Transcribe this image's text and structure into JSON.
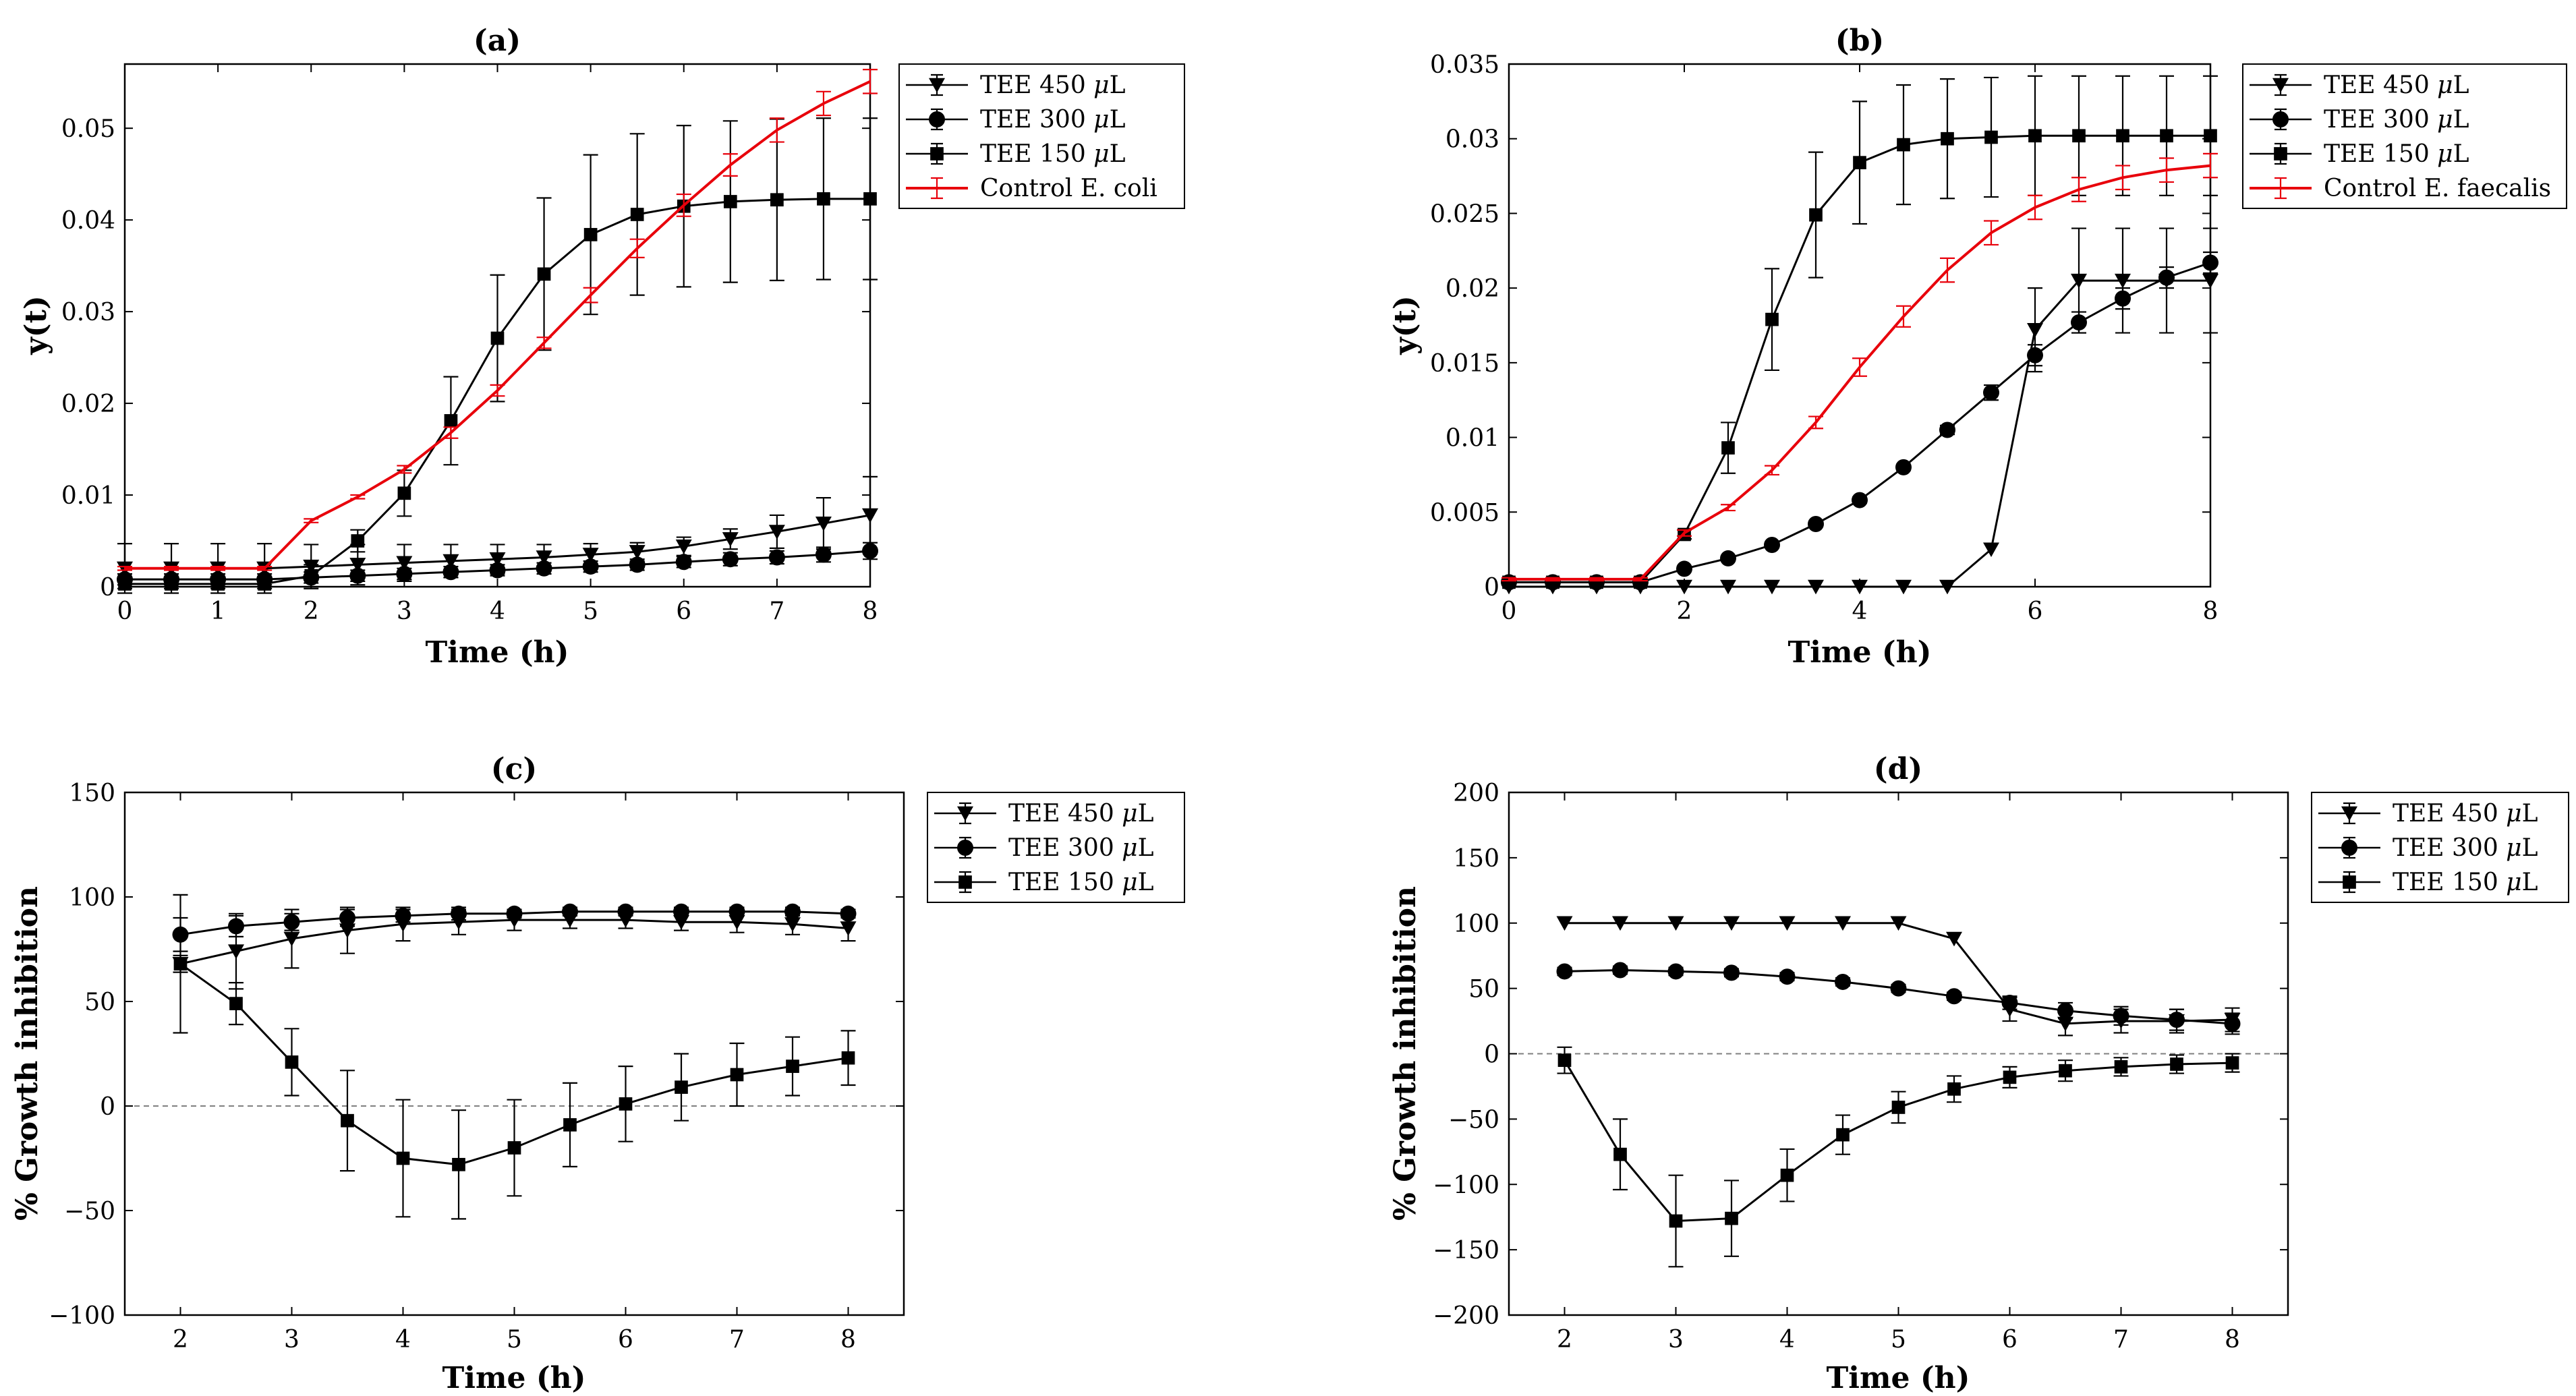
{
  "figure": {
    "colors": {
      "control": "#e8000b",
      "treatment": "#000000",
      "zero_line": "#808080"
    },
    "marker_names": {
      "TEE 450": "triangle-down",
      "TEE 300": "circle",
      "TEE 150": "square"
    }
  },
  "chart_data": [
    {
      "id": "a",
      "type": "line",
      "title": "(a)",
      "xlabel": "Time (h)",
      "ylabel": "y(t)",
      "xlim": [
        0,
        8
      ],
      "ylim": [
        0,
        0.057
      ],
      "xticks": [
        0,
        1,
        2,
        3,
        4,
        5,
        6,
        7,
        8
      ],
      "yticks": [
        0,
        0.01,
        0.02,
        0.03,
        0.04,
        0.05
      ],
      "ytick_labels": [
        "0",
        "0.01",
        "0.02",
        "0.03",
        "0.04",
        "0.05"
      ],
      "legend_position": "top-right",
      "x": [
        0,
        0.5,
        1,
        1.5,
        2,
        2.5,
        3,
        3.5,
        4,
        4.5,
        5,
        5.5,
        6,
        6.5,
        7,
        7.5,
        8
      ],
      "series": [
        {
          "name": "TEE 450 μL",
          "legend": "TEE 450 $\\mu$L",
          "marker": "triangle-down",
          "color": "#000000",
          "values": [
            0.002,
            0.002,
            0.002,
            0.002,
            0.0022,
            0.0024,
            0.0026,
            0.0028,
            0.003,
            0.0032,
            0.0035,
            0.0038,
            0.0044,
            0.0052,
            0.006,
            0.0069,
            0.0078
          ],
          "errors": [
            0.0027,
            0.0027,
            0.0027,
            0.0027,
            0.0024,
            0.0022,
            0.002,
            0.0018,
            0.0016,
            0.0014,
            0.0012,
            0.001,
            0.001,
            0.0011,
            0.0018,
            0.0028,
            0.0042
          ]
        },
        {
          "name": "TEE 300 μL",
          "legend": "TEE 300 $\\mu$L",
          "marker": "circle",
          "color": "#000000",
          "values": [
            0.0008,
            0.0008,
            0.0008,
            0.0008,
            0.001,
            0.0012,
            0.0014,
            0.0016,
            0.0018,
            0.002,
            0.0022,
            0.0024,
            0.0027,
            0.003,
            0.0032,
            0.0035,
            0.0039
          ],
          "errors": [
            0.0006,
            0.0006,
            0.0006,
            0.0006,
            0.0006,
            0.0006,
            0.0006,
            0.0006,
            0.0006,
            0.0006,
            0.0006,
            0.0006,
            0.0006,
            0.0007,
            0.0007,
            0.0008,
            0.0009
          ]
        },
        {
          "name": "TEE 150 μL",
          "legend": "TEE 150 $\\mu$L",
          "marker": "square",
          "color": "#000000",
          "values": [
            0.0003,
            0.0003,
            0.0003,
            0.0003,
            0.0012,
            0.005,
            0.0102,
            0.0181,
            0.0271,
            0.0341,
            0.0384,
            0.0406,
            0.0415,
            0.042,
            0.0422,
            0.0423,
            0.0423
          ],
          "errors": [
            0.0005,
            0.0005,
            0.0005,
            0.0005,
            0.0012,
            0.0012,
            0.0025,
            0.0048,
            0.0069,
            0.0083,
            0.0087,
            0.0088,
            0.0088,
            0.0088,
            0.0088,
            0.0088,
            0.0088
          ]
        },
        {
          "name": "Control E. coli",
          "legend": "Control E. coli",
          "marker": "none",
          "color": "#e8000b",
          "values": [
            0.002,
            0.002,
            0.002,
            0.002,
            0.0072,
            0.0098,
            0.0128,
            0.0168,
            0.0214,
            0.0266,
            0.0318,
            0.0369,
            0.0416,
            0.046,
            0.0498,
            0.0527,
            0.0551
          ],
          "errors": [
            0.0002,
            0.0002,
            0.0002,
            0.0002,
            0.0002,
            0.0002,
            0.0004,
            0.0006,
            0.0006,
            0.0006,
            0.0008,
            0.001,
            0.0012,
            0.0012,
            0.0013,
            0.0013,
            0.0013
          ]
        }
      ]
    },
    {
      "id": "b",
      "type": "line",
      "title": "(b)",
      "xlabel": "Time (h)",
      "ylabel": "y(t)",
      "xlim": [
        0,
        8
      ],
      "ylim": [
        0,
        0.035
      ],
      "xticks": [
        0,
        2,
        4,
        6,
        8
      ],
      "yticks": [
        0,
        0.005,
        0.01,
        0.015,
        0.02,
        0.025,
        0.03,
        0.035
      ],
      "ytick_labels": [
        "0",
        "0.005",
        "0.01",
        "0.015",
        "0.02",
        "0.025",
        "0.03",
        "0.035"
      ],
      "legend_position": "top-right",
      "x": [
        0,
        0.5,
        1,
        1.5,
        2,
        2.5,
        3,
        3.5,
        4,
        4.5,
        5,
        5.5,
        6,
        6.5,
        7,
        7.5,
        8
      ],
      "series": [
        {
          "name": "TEE 450 μL",
          "legend": "TEE 450 $\\mu$L",
          "marker": "triangle-down",
          "color": "#000000",
          "values": [
            0,
            0,
            0,
            0,
            0,
            0,
            0,
            0,
            0,
            0,
            0,
            0.0025,
            0.0172,
            0.0205,
            0.0205,
            0.0205,
            0.0205
          ],
          "errors": [
            0,
            0,
            0,
            0,
            0,
            0,
            0,
            0,
            0,
            0,
            0,
            0,
            0.0028,
            0.0035,
            0.0035,
            0.0035,
            0.0035
          ]
        },
        {
          "name": "TEE 300 μL",
          "legend": "TEE 300 $\\mu$L",
          "marker": "circle",
          "color": "#000000",
          "values": [
            0.0003,
            0.0003,
            0.0003,
            0.0003,
            0.0012,
            0.0019,
            0.0028,
            0.0042,
            0.0058,
            0.008,
            0.0105,
            0.013,
            0.0155,
            0.0177,
            0.0193,
            0.0207,
            0.0217
          ],
          "errors": [
            0.0001,
            0.0001,
            0.0001,
            0.0001,
            0.0001,
            0.0001,
            0.0001,
            0.0001,
            0.0002,
            0.0002,
            0.0003,
            0.0005,
            0.0007,
            0.0007,
            0.0007,
            0.0007,
            0.0007
          ]
        },
        {
          "name": "TEE 150 μL",
          "legend": "TEE 150 $\\mu$L",
          "marker": "square",
          "color": "#000000",
          "values": [
            0.0003,
            0.0003,
            0.0003,
            0.0003,
            0.0035,
            0.0093,
            0.0179,
            0.0249,
            0.0284,
            0.0296,
            0.03,
            0.0301,
            0.0302,
            0.0302,
            0.0302,
            0.0302,
            0.0302
          ],
          "errors": [
            0.0001,
            0.0001,
            0.0001,
            0.0001,
            0.0003,
            0.0017,
            0.0034,
            0.0042,
            0.0041,
            0.004,
            0.004,
            0.004,
            0.004,
            0.004,
            0.004,
            0.004,
            0.004
          ]
        },
        {
          "name": "Control E. faecalis",
          "legend": "Control E. faecalis",
          "marker": "none",
          "color": "#e8000b",
          "values": [
            0.0005,
            0.0005,
            0.0005,
            0.0005,
            0.0036,
            0.0053,
            0.0078,
            0.011,
            0.0147,
            0.0181,
            0.0212,
            0.0237,
            0.0254,
            0.0266,
            0.0274,
            0.0279,
            0.0282
          ],
          "errors": [
            0.0001,
            0.0001,
            0.0001,
            0.0001,
            0.0002,
            0.0002,
            0.0003,
            0.0004,
            0.0006,
            0.0007,
            0.0008,
            0.0008,
            0.0008,
            0.0008,
            0.0008,
            0.0008,
            0.0008
          ]
        }
      ]
    },
    {
      "id": "c",
      "type": "line",
      "title": "(c)",
      "xlabel": "Time (h)",
      "ylabel": "% Growth inhibition",
      "xlim": [
        1.5,
        8.5
      ],
      "ylim": [
        -100,
        150
      ],
      "xticks": [
        2,
        3,
        4,
        5,
        6,
        7,
        8
      ],
      "yticks": [
        -100,
        -50,
        0,
        50,
        100,
        150
      ],
      "ytick_labels": [
        "−100",
        "−50",
        "0",
        "50",
        "100",
        "150"
      ],
      "zero_line": true,
      "legend_position": "top-right",
      "x": [
        2,
        2.5,
        3,
        3.5,
        4,
        4.5,
        5,
        5.5,
        6,
        6.5,
        7,
        7.5,
        8
      ],
      "series": [
        {
          "name": "TEE 450 μL",
          "legend": "TEE 450 $\\mu$L",
          "marker": "triangle-down",
          "color": "#000000",
          "values": [
            68,
            74,
            80,
            84,
            87,
            88,
            89,
            89,
            89,
            88,
            88,
            87,
            85
          ],
          "errors": [
            33,
            18,
            14,
            11,
            8,
            6,
            5,
            4,
            4,
            4,
            5,
            5,
            6
          ]
        },
        {
          "name": "TEE 300 μL",
          "legend": "TEE 300 $\\mu$L",
          "marker": "circle",
          "color": "#000000",
          "values": [
            82,
            86,
            88,
            90,
            91,
            92,
            92,
            93,
            93,
            93,
            93,
            93,
            92
          ],
          "errors": [
            8,
            5,
            4,
            4,
            3,
            3,
            2,
            2,
            2,
            2,
            2,
            2,
            2
          ]
        },
        {
          "name": "TEE 150 μL",
          "legend": "TEE 150 $\\mu$L",
          "marker": "square",
          "color": "#000000",
          "values": [
            68,
            49,
            21,
            -7,
            -25,
            -28,
            -20,
            -9,
            1,
            9,
            15,
            19,
            23
          ],
          "errors": [
            4,
            10,
            16,
            24,
            28,
            26,
            23,
            20,
            18,
            16,
            15,
            14,
            13
          ]
        }
      ]
    },
    {
      "id": "d",
      "type": "line",
      "title": "(d)",
      "xlabel": "Time (h)",
      "ylabel": "% Growth inhibition",
      "xlim": [
        1.5,
        8.5
      ],
      "ylim": [
        -200,
        200
      ],
      "xticks": [
        2,
        3,
        4,
        5,
        6,
        7,
        8
      ],
      "yticks": [
        -200,
        -150,
        -100,
        -50,
        0,
        50,
        100,
        150,
        200
      ],
      "ytick_labels": [
        "−200",
        "−150",
        "−100",
        "−50",
        "0",
        "50",
        "100",
        "150",
        "200"
      ],
      "zero_line": true,
      "legend_position": "top-right",
      "x": [
        2,
        2.5,
        3,
        3.5,
        4,
        4.5,
        5,
        5.5,
        6,
        6.5,
        7,
        7.5,
        8
      ],
      "series": [
        {
          "name": "TEE 450 μL",
          "legend": "TEE 450 $\\mu$L",
          "marker": "triangle-down",
          "color": "#000000",
          "values": [
            100,
            100,
            100,
            100,
            100,
            100,
            100,
            88,
            34,
            23,
            25,
            25,
            26
          ],
          "errors": [
            0,
            0,
            0,
            0,
            0,
            0,
            0,
            0,
            9,
            9,
            9,
            9,
            9
          ]
        },
        {
          "name": "TEE 300 μL",
          "legend": "TEE 300 $\\mu$L",
          "marker": "circle",
          "color": "#000000",
          "values": [
            63,
            64,
            63,
            62,
            59,
            55,
            50,
            44,
            39,
            33,
            29,
            26,
            23
          ],
          "errors": [
            3,
            3,
            3,
            3,
            3,
            3,
            3,
            3,
            5,
            6,
            7,
            8,
            8
          ]
        },
        {
          "name": "TEE 150 μL",
          "legend": "TEE 150 $\\mu$L",
          "marker": "square",
          "color": "#000000",
          "values": [
            -5,
            -77,
            -128,
            -126,
            -93,
            -62,
            -41,
            -27,
            -18,
            -13,
            -10,
            -8,
            -7
          ],
          "errors": [
            10,
            27,
            35,
            29,
            20,
            15,
            12,
            10,
            8,
            8,
            7,
            7,
            7
          ]
        }
      ]
    }
  ]
}
